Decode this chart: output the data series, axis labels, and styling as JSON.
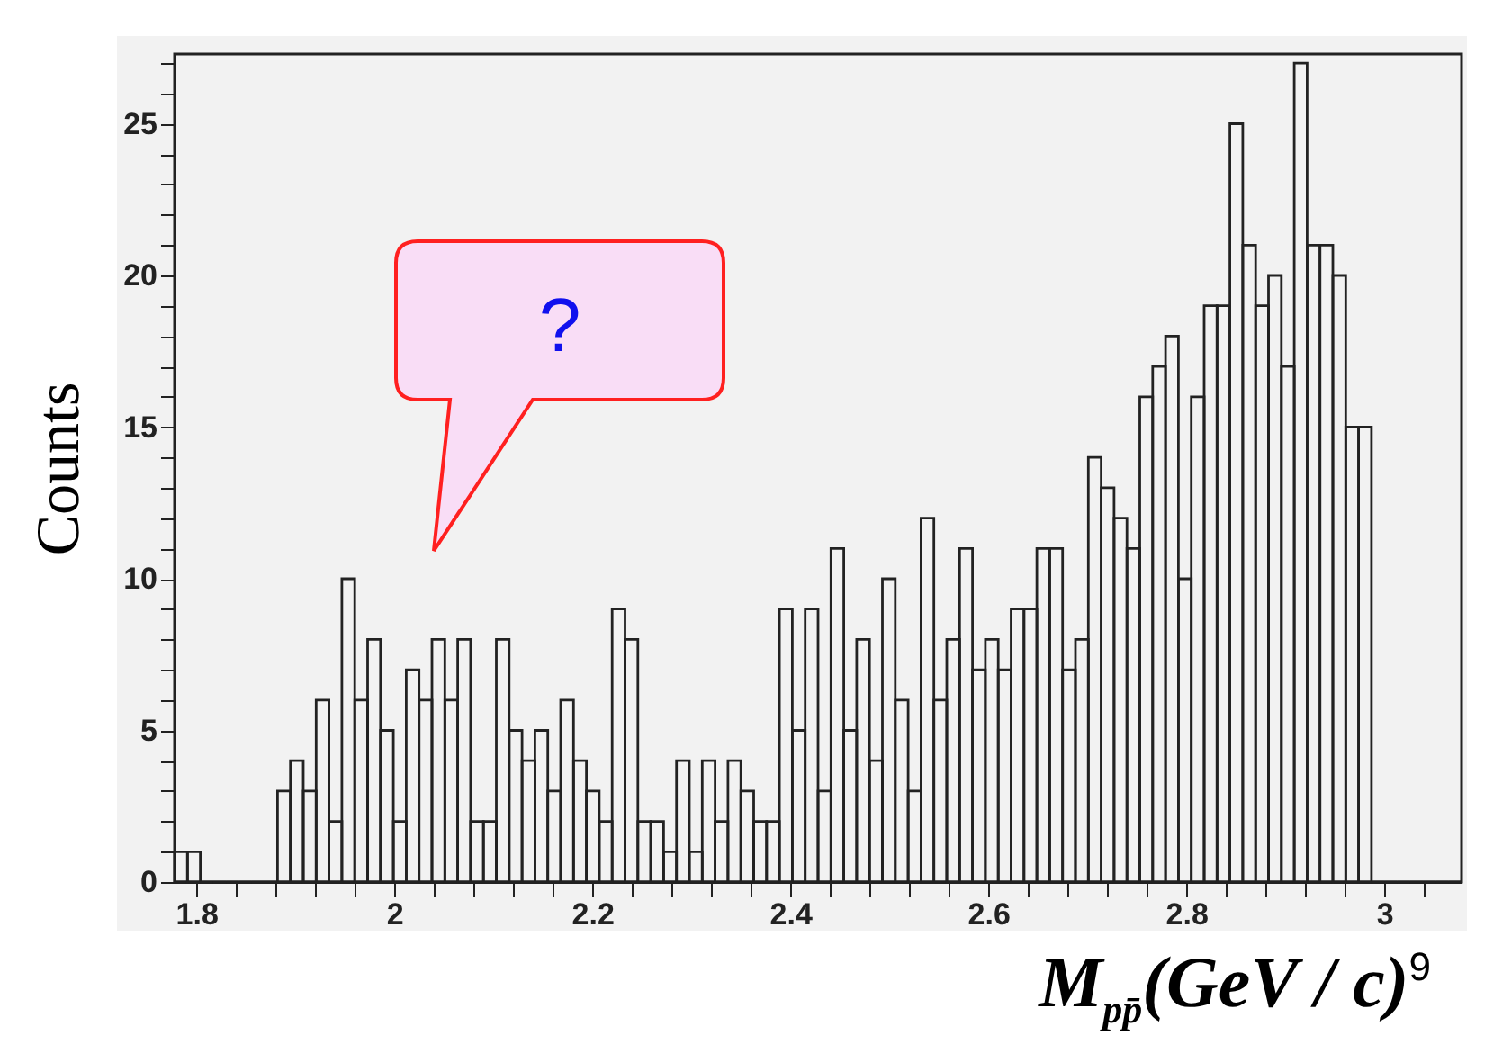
{
  "chart_data": {
    "type": "histogram",
    "xlabel": "M$_{pp̄}$(GeV / c)$^{9}$",
    "ylabel": "Counts",
    "annotations": [
      "?"
    ],
    "color": "#222222",
    "bins": [
      1.778,
      1.791,
      1.804,
      1.817,
      1.83,
      1.843,
      1.856,
      1.869,
      1.882,
      1.895,
      1.908,
      1.921,
      1.934,
      1.947,
      1.96,
      1.973,
      1.986,
      1.999,
      2.012,
      2.025,
      2.038,
      2.051,
      2.064,
      2.077,
      2.09,
      2.103,
      2.116,
      2.129,
      2.142,
      2.155,
      2.168,
      2.181,
      2.194,
      2.207,
      2.22,
      2.233,
      2.246,
      2.259,
      2.272,
      2.285,
      2.298,
      2.311,
      2.324,
      2.337,
      2.35,
      2.363,
      2.376,
      2.389,
      2.402,
      2.415,
      2.428,
      2.441,
      2.454,
      2.467,
      2.48,
      2.493,
      2.506,
      2.519,
      2.532,
      2.545,
      2.558,
      2.571,
      2.584,
      2.597,
      2.61,
      2.623,
      2.636,
      2.649,
      2.662,
      2.675,
      2.688,
      2.701,
      2.714,
      2.727,
      2.74,
      2.753,
      2.766,
      2.779,
      2.792,
      2.805,
      2.818,
      2.831,
      2.844,
      2.857,
      2.87,
      2.883,
      2.896,
      2.909,
      2.922,
      2.935,
      2.948,
      2.961,
      2.974,
      2.987,
      3.0,
      3.013,
      3.026,
      3.039,
      3.052,
      3.065,
      3.078
    ],
    "values": [
      1,
      1,
      0,
      0,
      0,
      0,
      0,
      0,
      3,
      4,
      3,
      6,
      2,
      10,
      6,
      8,
      5,
      2,
      7,
      6,
      8,
      6,
      8,
      2,
      2,
      8,
      5,
      4,
      5,
      3,
      6,
      4,
      3,
      2,
      9,
      8,
      2,
      2,
      1,
      4,
      1,
      4,
      2,
      4,
      3,
      2,
      2,
      9,
      5,
      9,
      3,
      11,
      5,
      8,
      4,
      10,
      6,
      3,
      12,
      6,
      8,
      11,
      7,
      8,
      7,
      9,
      9,
      11,
      11,
      7,
      8,
      14,
      13,
      12,
      11,
      16,
      17,
      18,
      10,
      16,
      19,
      19,
      25,
      21,
      19,
      20,
      17,
      27,
      21,
      21,
      20,
      15,
      15,
      0,
      0,
      0,
      0,
      0,
      0,
      0
    ],
    "xlim": [
      1.778,
      3.078
    ],
    "ylim": [
      0,
      27.3
    ],
    "xticks": [
      1.8,
      {
        "value": 1.84,
        "label": null
      },
      {
        "value": 1.88,
        "label": null
      },
      {
        "value": 1.92,
        "label": null
      },
      {
        "value": 1.96,
        "label": null
      },
      2,
      {
        "value": 2.04,
        "label": null
      },
      {
        "value": 2.08,
        "label": null
      },
      {
        "value": 2.12,
        "label": null
      },
      {
        "value": 2.16,
        "label": null
      },
      2.2,
      {
        "value": 2.24,
        "label": null
      },
      {
        "value": 2.28,
        "label": null
      },
      {
        "value": 2.32,
        "label": null
      },
      {
        "value": 2.36,
        "label": null
      },
      2.4,
      {
        "value": 2.44,
        "label": null
      },
      {
        "value": 2.48,
        "label": null
      },
      {
        "value": 2.52,
        "label": null
      },
      {
        "value": 2.56,
        "label": null
      },
      2.6,
      {
        "value": 2.64,
        "label": null
      },
      {
        "value": 2.68,
        "label": null
      },
      {
        "value": 2.72,
        "label": null
      },
      {
        "value": 2.76,
        "label": null
      },
      2.8,
      {
        "value": 2.84,
        "label": null
      },
      {
        "value": 2.88,
        "label": null
      },
      {
        "value": 2.92,
        "label": null
      },
      {
        "value": 2.96,
        "label": null
      },
      3,
      {
        "value": 3.04,
        "label": null
      }
    ],
    "yticks": [
      0,
      {
        "value": 1,
        "label": null
      },
      {
        "value": 2,
        "label": null
      },
      {
        "value": 3,
        "label": null
      },
      {
        "value": 4,
        "label": null
      },
      5,
      {
        "value": 6,
        "label": null
      },
      {
        "value": 7,
        "label": null
      },
      {
        "value": 8,
        "label": null
      },
      {
        "value": 9,
        "label": null
      },
      10,
      {
        "value": 11,
        "label": null
      },
      {
        "value": 12,
        "label": null
      },
      {
        "value": 13,
        "label": null
      },
      {
        "value": 14,
        "label": null
      },
      15,
      {
        "value": 16,
        "label": null
      },
      {
        "value": 17,
        "label": null
      },
      {
        "value": 18,
        "label": null
      },
      {
        "value": 19,
        "label": null
      },
      20,
      {
        "value": 21,
        "label": null
      },
      {
        "value": 22,
        "label": null
      },
      {
        "value": 23,
        "label": null
      },
      {
        "value": 24,
        "label": null
      },
      25,
      {
        "value": 26,
        "label": null
      },
      {
        "value": 27,
        "label": null
      }
    ]
  }
}
